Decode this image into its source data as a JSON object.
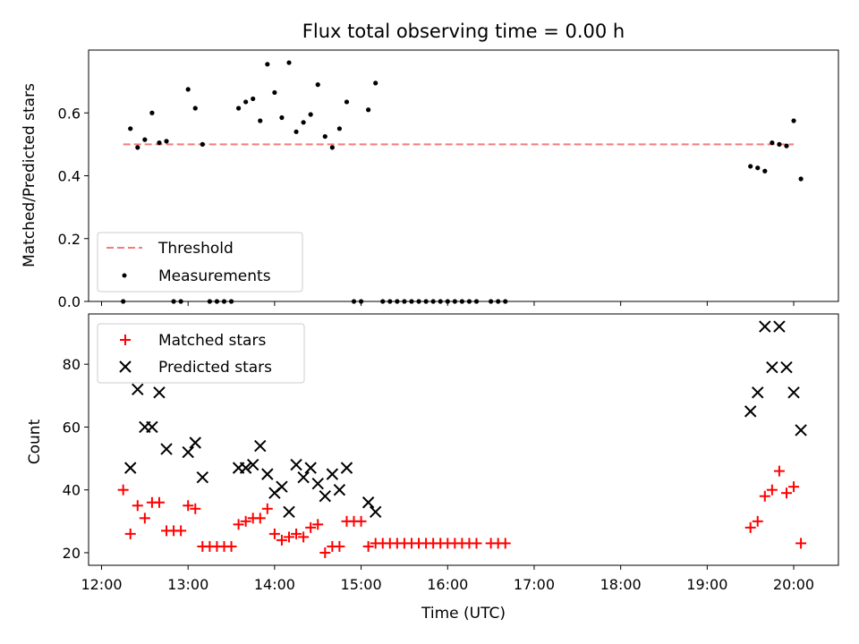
{
  "chart_data": [
    {
      "type": "scatter",
      "title": "Flux total observing time = 0.00 h",
      "ylabel": "Matched/Predicted stars",
      "xlabel": "",
      "ylim": [
        0,
        0.8
      ],
      "xlim": [
        "11:51",
        "20:31"
      ],
      "yticks": [
        "0.0",
        "0.2",
        "0.4",
        "0.6"
      ],
      "legend_position": "lower-left",
      "threshold": {
        "name": "Threshold",
        "value": 0.5,
        "x_start": "12:15",
        "x_end": "20:00",
        "color": "#f47c7c"
      },
      "series": [
        {
          "name": "Measurements",
          "color": "#000000",
          "x": [
            "12:15",
            "12:20",
            "12:25",
            "12:30",
            "12:35",
            "12:40",
            "12:45",
            "12:50",
            "12:55",
            "13:00",
            "13:05",
            "13:10",
            "13:15",
            "13:20",
            "13:25",
            "13:30",
            "13:35",
            "13:40",
            "13:45",
            "13:50",
            "13:55",
            "14:00",
            "14:05",
            "14:10",
            "14:15",
            "14:20",
            "14:25",
            "14:30",
            "14:35",
            "14:40",
            "14:45",
            "14:50",
            "14:55",
            "15:00",
            "15:05",
            "15:10",
            "15:15",
            "15:20",
            "15:25",
            "15:30",
            "15:35",
            "15:40",
            "15:45",
            "15:50",
            "15:55",
            "16:00",
            "16:05",
            "16:10",
            "16:15",
            "16:20",
            "16:30",
            "16:35",
            "16:40",
            "19:30",
            "19:35",
            "19:40",
            "19:45",
            "19:50",
            "19:55",
            "20:00",
            "20:05"
          ],
          "y": [
            0,
            0.55,
            0.49,
            0.515,
            0.6,
            0.505,
            0.51,
            0,
            0,
            0.675,
            0.615,
            0.5,
            0,
            0,
            0,
            0,
            0.615,
            0.635,
            0.645,
            0.575,
            0.755,
            0.665,
            0.585,
            0.76,
            0.54,
            0.57,
            0.595,
            0.69,
            0.525,
            0.49,
            0.55,
            0.635,
            0,
            0,
            0.61,
            0.695,
            0,
            0,
            0,
            0,
            0,
            0,
            0,
            0,
            0,
            0,
            0,
            0,
            0,
            0,
            0,
            0,
            0,
            0.43,
            0.425,
            0.415,
            0.505,
            0.5,
            0.495,
            0.575,
            0.39
          ]
        }
      ]
    },
    {
      "type": "scatter",
      "title": "",
      "ylabel": "Count",
      "xlabel": "Time (UTC)",
      "ylim": [
        16,
        96
      ],
      "xlim": [
        "11:51",
        "20:31"
      ],
      "xticks": [
        "12:00",
        "13:00",
        "14:00",
        "15:00",
        "16:00",
        "17:00",
        "18:00",
        "19:00",
        "20:00"
      ],
      "yticks": [
        "20",
        "40",
        "60",
        "80"
      ],
      "legend_position": "upper-left",
      "series": [
        {
          "name": "Matched stars",
          "color": "#ff0000",
          "marker": "plus",
          "x": [
            "12:15",
            "12:20",
            "12:25",
            "12:30",
            "12:35",
            "12:40",
            "12:45",
            "12:50",
            "12:55",
            "13:00",
            "13:05",
            "13:10",
            "13:15",
            "13:20",
            "13:25",
            "13:30",
            "13:35",
            "13:40",
            "13:45",
            "13:50",
            "13:55",
            "14:00",
            "14:05",
            "14:10",
            "14:15",
            "14:20",
            "14:25",
            "14:30",
            "14:35",
            "14:40",
            "14:45",
            "14:50",
            "14:55",
            "15:00",
            "15:05",
            "15:10",
            "15:15",
            "15:20",
            "15:25",
            "15:30",
            "15:35",
            "15:40",
            "15:45",
            "15:50",
            "15:55",
            "16:00",
            "16:05",
            "16:10",
            "16:15",
            "16:20",
            "16:30",
            "16:35",
            "16:40",
            "19:30",
            "19:35",
            "19:40",
            "19:45",
            "19:50",
            "19:55",
            "20:00",
            "20:05"
          ],
          "y": [
            40,
            26,
            35,
            31,
            36,
            36,
            27,
            27,
            27,
            35,
            34,
            22,
            22,
            22,
            22,
            22,
            29,
            30,
            31,
            31,
            34,
            26,
            24,
            25,
            26,
            25,
            28,
            29,
            20,
            22,
            22,
            30,
            30,
            30,
            22,
            23,
            23,
            23,
            23,
            23,
            23,
            23,
            23,
            23,
            23,
            23,
            23,
            23,
            23,
            23,
            23,
            23,
            23,
            28,
            30,
            38,
            40,
            46,
            39,
            41,
            23
          ]
        },
        {
          "name": "Predicted stars",
          "color": "#000000",
          "marker": "x",
          "x": [
            "12:20",
            "12:25",
            "12:30",
            "12:35",
            "12:40",
            "12:45",
            "13:00",
            "13:05",
            "13:10",
            "13:35",
            "13:40",
            "13:45",
            "13:50",
            "13:55",
            "14:00",
            "14:05",
            "14:10",
            "14:15",
            "14:20",
            "14:25",
            "14:30",
            "14:35",
            "14:40",
            "14:45",
            "14:50",
            "15:05",
            "15:10",
            "19:30",
            "19:35",
            "19:40",
            "19:45",
            "19:50",
            "19:55",
            "20:00",
            "20:05"
          ],
          "y": [
            47,
            72,
            60,
            60,
            71,
            53,
            52,
            55,
            44,
            47,
            47,
            48,
            54,
            45,
            39,
            41,
            33,
            48,
            44,
            47,
            42,
            38,
            45,
            40,
            47,
            36,
            33,
            65,
            71,
            92,
            79,
            92,
            79,
            71,
            59
          ]
        }
      ]
    }
  ]
}
